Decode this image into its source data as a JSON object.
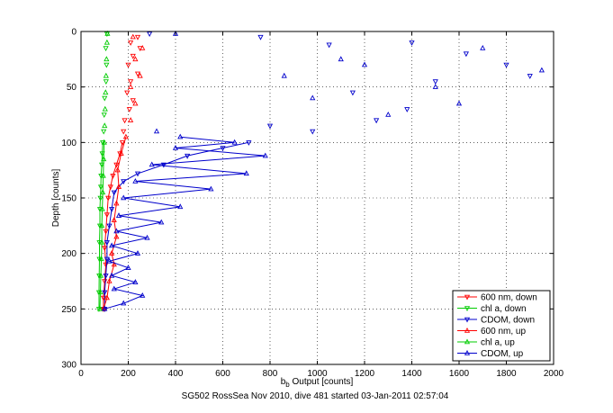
{
  "chart_data": {
    "type": "scatter",
    "xlabel_base": "b",
    "xlabel_sub": "b",
    "xlabel_rest": " Output [counts]",
    "ylabel": "Depth [counts]",
    "caption": "SG502 RossSea Nov 2010, dive 481 started 03-Jan-2011 02:57:04",
    "xlim": [
      0,
      2000
    ],
    "ylim": [
      0,
      300
    ],
    "y_reversed": true,
    "x_ticks": [
      "0",
      "200",
      "400",
      "600",
      "800",
      "1000",
      "1200",
      "1400",
      "1600",
      "1800",
      "2000"
    ],
    "y_ticks": [
      "0",
      "50",
      "100",
      "150",
      "200",
      "250",
      "300"
    ],
    "grid": true,
    "legend_position": "bottom-right",
    "series": [
      {
        "name": "600 nm, down",
        "color": "#ff0000",
        "marker": "triangle-down",
        "points": [
          [
            240,
            5
          ],
          [
            210,
            10
          ],
          [
            250,
            15
          ],
          [
            220,
            22
          ],
          [
            200,
            30
          ],
          [
            240,
            38
          ],
          [
            210,
            45
          ],
          [
            195,
            55
          ],
          [
            220,
            62
          ],
          [
            205,
            70
          ],
          [
            185,
            80
          ],
          [
            180,
            90
          ],
          [
            175,
            100
          ],
          [
            165,
            110
          ],
          [
            150,
            120
          ],
          [
            135,
            130
          ],
          [
            125,
            140
          ],
          [
            115,
            150
          ],
          [
            110,
            165
          ],
          [
            105,
            180
          ],
          [
            100,
            195
          ],
          [
            105,
            210
          ],
          [
            100,
            225
          ],
          [
            95,
            240
          ],
          [
            95,
            250
          ]
        ]
      },
      {
        "name": "chl a, down",
        "color": "#00cc00",
        "marker": "triangle-down",
        "points": [
          [
            110,
            2
          ],
          [
            105,
            15
          ],
          [
            108,
            30
          ],
          [
            106,
            45
          ],
          [
            100,
            60
          ],
          [
            98,
            75
          ],
          [
            96,
            90
          ],
          [
            92,
            100
          ],
          [
            90,
            110
          ],
          [
            88,
            120
          ],
          [
            85,
            130
          ],
          [
            84,
            140
          ],
          [
            82,
            150
          ],
          [
            80,
            160
          ],
          [
            80,
            175
          ],
          [
            78,
            190
          ],
          [
            78,
            205
          ],
          [
            77,
            220
          ],
          [
            76,
            235
          ],
          [
            76,
            250
          ]
        ]
      },
      {
        "name": "CDOM, down",
        "color": "#0000cc",
        "marker": "triangle-down",
        "points": [
          [
            290,
            2
          ],
          [
            760,
            5
          ],
          [
            1050,
            12
          ],
          [
            1400,
            10
          ],
          [
            1630,
            20
          ],
          [
            1800,
            30
          ],
          [
            1900,
            40
          ],
          [
            1500,
            45
          ],
          [
            1150,
            55
          ],
          [
            1380,
            70
          ],
          [
            1250,
            80
          ],
          [
            980,
            90
          ],
          [
            800,
            85
          ],
          [
            710,
            100
          ],
          [
            600,
            105
          ],
          [
            450,
            112
          ],
          [
            350,
            120
          ],
          [
            240,
            128
          ],
          [
            180,
            135
          ],
          [
            140,
            145
          ],
          [
            130,
            160
          ],
          [
            120,
            175
          ],
          [
            110,
            190
          ],
          [
            110,
            205
          ],
          [
            105,
            220
          ],
          [
            100,
            235
          ],
          [
            100,
            250
          ]
        ]
      },
      {
        "name": "600 nm, up",
        "color": "#ff0000",
        "marker": "triangle-up",
        "points": [
          [
            95,
            250
          ],
          [
            110,
            240
          ],
          [
            120,
            225
          ],
          [
            140,
            210
          ],
          [
            130,
            200
          ],
          [
            150,
            185
          ],
          [
            140,
            170
          ],
          [
            150,
            155
          ],
          [
            160,
            140
          ],
          [
            155,
            125
          ],
          [
            170,
            110
          ],
          [
            190,
            95
          ],
          [
            210,
            80
          ],
          [
            230,
            65
          ],
          [
            210,
            50
          ],
          [
            250,
            40
          ],
          [
            230,
            25
          ],
          [
            260,
            15
          ],
          [
            220,
            5
          ]
        ]
      },
      {
        "name": "chl a, up",
        "color": "#00cc00",
        "marker": "triangle-up",
        "points": [
          [
            80,
            250
          ],
          [
            82,
            235
          ],
          [
            84,
            220
          ],
          [
            86,
            205
          ],
          [
            88,
            190
          ],
          [
            88,
            175
          ],
          [
            90,
            160
          ],
          [
            92,
            145
          ],
          [
            94,
            130
          ],
          [
            96,
            115
          ],
          [
            98,
            100
          ],
          [
            100,
            85
          ],
          [
            102,
            70
          ],
          [
            104,
            55
          ],
          [
            106,
            40
          ],
          [
            108,
            25
          ],
          [
            110,
            10
          ],
          [
            112,
            2
          ]
        ]
      },
      {
        "name": "CDOM, up",
        "color": "#0000cc",
        "marker": "triangle-up",
        "points": [
          [
            100,
            250
          ],
          [
            180,
            245
          ],
          [
            260,
            238
          ],
          [
            140,
            232
          ],
          [
            230,
            226
          ],
          [
            130,
            220
          ],
          [
            200,
            213
          ],
          [
            120,
            207
          ],
          [
            240,
            200
          ],
          [
            130,
            193
          ],
          [
            280,
            186
          ],
          [
            150,
            180
          ],
          [
            340,
            172
          ],
          [
            160,
            166
          ],
          [
            420,
            158
          ],
          [
            180,
            150
          ],
          [
            550,
            142
          ],
          [
            230,
            135
          ],
          [
            700,
            128
          ],
          [
            300,
            120
          ],
          [
            780,
            112
          ],
          [
            400,
            105
          ],
          [
            650,
            100
          ],
          [
            420,
            95
          ],
          [
            320,
            90
          ],
          [
            980,
            60
          ],
          [
            1200,
            30
          ],
          [
            1500,
            50
          ],
          [
            1700,
            15
          ],
          [
            1950,
            35
          ],
          [
            1300,
            75
          ],
          [
            1100,
            25
          ],
          [
            1600,
            65
          ],
          [
            860,
            40
          ],
          [
            400,
            2
          ]
        ]
      }
    ]
  }
}
